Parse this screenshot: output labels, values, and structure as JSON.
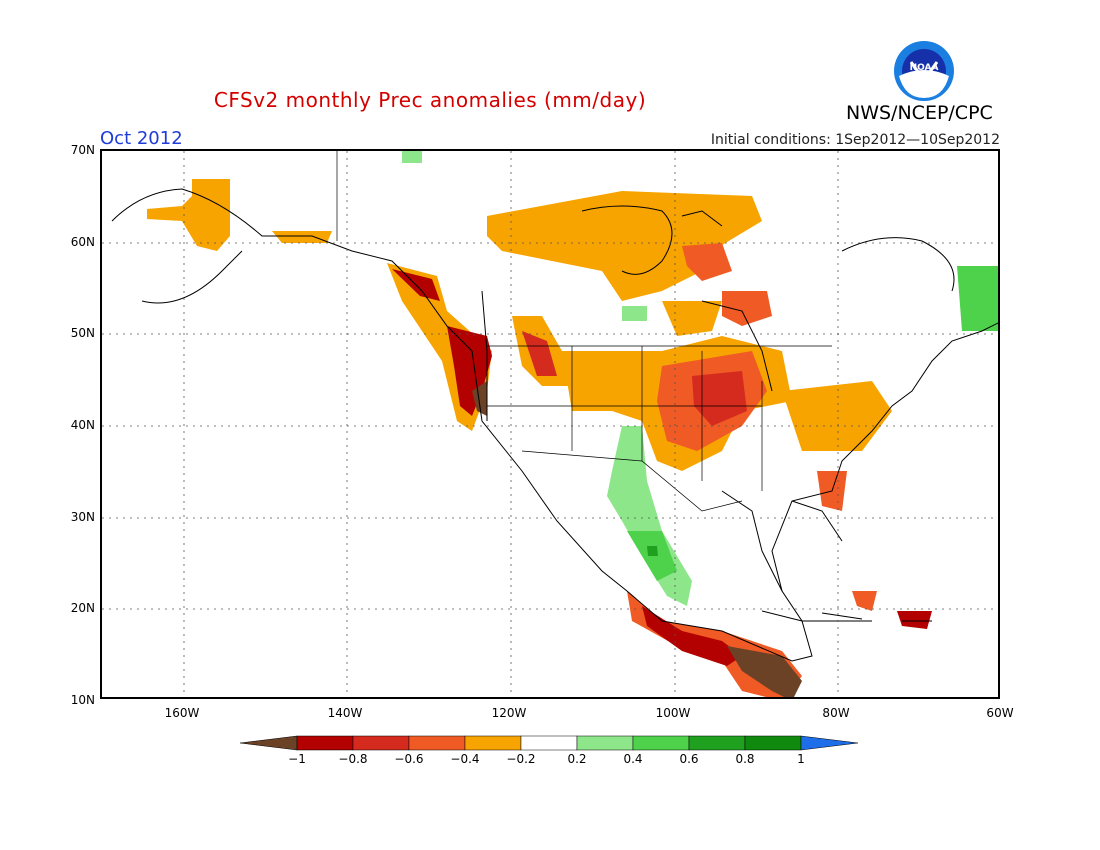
{
  "title": "CFSv2 monthly Prec anomalies (mm/day)",
  "month": "Oct 2012",
  "initial_conditions": "Initial conditions: 1Sep2012—10Sep2012",
  "agency": "NWS/NCEP/CPC",
  "logo_text": "NOAA",
  "lat_labels": [
    "70N",
    "60N",
    "50N",
    "40N",
    "30N",
    "20N",
    "10N"
  ],
  "lon_labels": [
    "160W",
    "140W",
    "120W",
    "100W",
    "80W",
    "60W"
  ],
  "colorbar": {
    "labels": [
      "−1",
      "−0.8",
      "−0.6",
      "−0.4",
      "−0.2",
      "0.2",
      "0.4",
      "0.6",
      "0.8",
      "1"
    ],
    "colors": [
      "#6b4226",
      "#b30000",
      "#d52b1e",
      "#f05a24",
      "#f7a400",
      "#ffffff",
      "#8ee68a",
      "#4fd24b",
      "#1fa11f",
      "#0f8a0f",
      "#1d6ee8"
    ]
  },
  "map_extent": {
    "lon": [
      -170,
      -60
    ],
    "lat": [
      10,
      70
    ]
  }
}
